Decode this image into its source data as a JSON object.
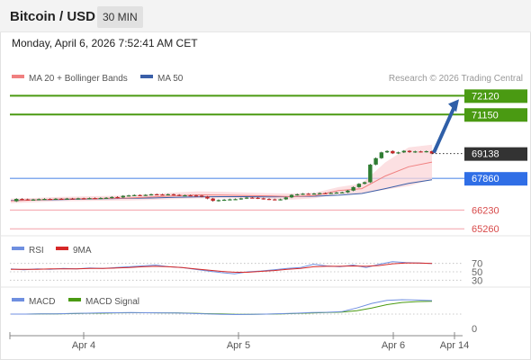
{
  "header": {
    "title": "Bitcoin / USD",
    "timeframe": "30 MIN"
  },
  "datetime": "Monday, April 6, 2026 7:52:41 AM CET",
  "legend": {
    "ma20": "MA 20 + Bollinger Bands",
    "ma50": "MA 50",
    "credit": "Research © 2026 Trading Central",
    "rsi": "RSI",
    "rsi_ma": "9MA",
    "macd": "MACD",
    "macd_signal": "MACD Signal"
  },
  "colors": {
    "ma20": "#f08080",
    "ma50": "#3a5fa8",
    "resistance": "#4a9a12",
    "support": "#f4a0a8",
    "pivot": "#5a8fe8",
    "price_tag": "#333333",
    "pivot_tag": "#2f6ee6",
    "arrow": "#2f5fa8",
    "candle_up": "#2e7d32",
    "candle_down": "#c62828",
    "rsi": "#6f8fe0",
    "rsi_ma": "#d62828",
    "macd": "#6f8fe0",
    "macd_signal": "#4a9a12"
  },
  "chart_data": {
    "type": "candlestick",
    "title": "Bitcoin / USD",
    "timeframe": "30 MIN",
    "x_ticks": [
      "Apr 4",
      "Apr 5",
      "Apr 6",
      "Apr 14"
    ],
    "price_range": [
      64900,
      72600
    ],
    "last_price": 69138,
    "levels": {
      "resistance": [
        72120,
        71150
      ],
      "pivot": 67860,
      "support": [
        66230,
        65260
      ]
    },
    "series": [
      {
        "name": "MA 20 + Bollinger Bands",
        "values": [
          66700,
          66740,
          66790,
          66810,
          66830,
          66850,
          66900,
          66960,
          67010,
          67000,
          66980,
          66960,
          66920,
          66980,
          67230,
          67330,
          67980,
          68460,
          68700
        ]
      },
      {
        "name": "MA 50",
        "values": [
          66720,
          66740,
          66760,
          66790,
          66810,
          66830,
          66850,
          66880,
          66910,
          66920,
          66920,
          66910,
          66920,
          66940,
          66990,
          67080,
          67330,
          67600,
          67790
        ]
      }
    ],
    "price_path": [
      66680,
      66800,
      66780,
      66760,
      66770,
      66790,
      66800,
      66790,
      66810,
      66800,
      66820,
      66810,
      66830,
      66820,
      66840,
      66830,
      66850,
      66860,
      66900,
      66880,
      66960,
      66980,
      67000,
      66990,
      67010,
      67040,
      67030,
      67020,
      67040,
      67010,
      66980,
      66990,
      66980,
      66970,
      66920,
      66820,
      66700,
      66740,
      66760,
      66780,
      66790,
      66830,
      66870,
      66860,
      66830,
      66800,
      66780,
      66760,
      66780,
      66880,
      67010,
      67040,
      67070,
      67060,
      67080,
      67100,
      67090,
      67110,
      67130,
      67140,
      67230,
      67410,
      67580,
      67660,
      68570,
      68900,
      69200,
      69270,
      69150,
      69200,
      69280,
      69210,
      69250,
      69230,
      69260,
      69138
    ],
    "rsi": {
      "levels": [
        70,
        50,
        30
      ],
      "values": [
        57,
        55,
        57,
        56,
        58,
        57,
        59,
        58,
        60,
        62,
        64,
        66,
        62,
        60,
        56,
        52,
        48,
        45,
        50,
        52,
        55,
        58,
        60,
        68,
        64,
        62,
        66,
        60,
        68,
        74,
        72,
        71,
        70
      ],
      "ma_values": [
        56,
        56,
        56,
        57,
        57,
        57,
        58,
        58,
        59,
        60,
        62,
        63,
        62,
        60,
        57,
        54,
        51,
        49,
        49,
        51,
        53,
        56,
        58,
        62,
        63,
        63,
        64,
        63,
        65,
        69,
        71,
        71,
        70
      ]
    },
    "macd": {
      "zero_label": "0",
      "values": [
        0,
        0,
        1,
        2,
        4,
        6,
        8,
        9,
        10,
        9,
        8,
        7,
        4,
        1,
        -2,
        -3,
        -2,
        0,
        3,
        6,
        10,
        12,
        16,
        40,
        70,
        90,
        94,
        92,
        88
      ],
      "signal": [
        0,
        0,
        1,
        1,
        3,
        5,
        6,
        8,
        9,
        9,
        8,
        8,
        6,
        3,
        1,
        -1,
        -1,
        0,
        1,
        4,
        7,
        10,
        13,
        22,
        40,
        62,
        76,
        82,
        84
      ]
    }
  }
}
